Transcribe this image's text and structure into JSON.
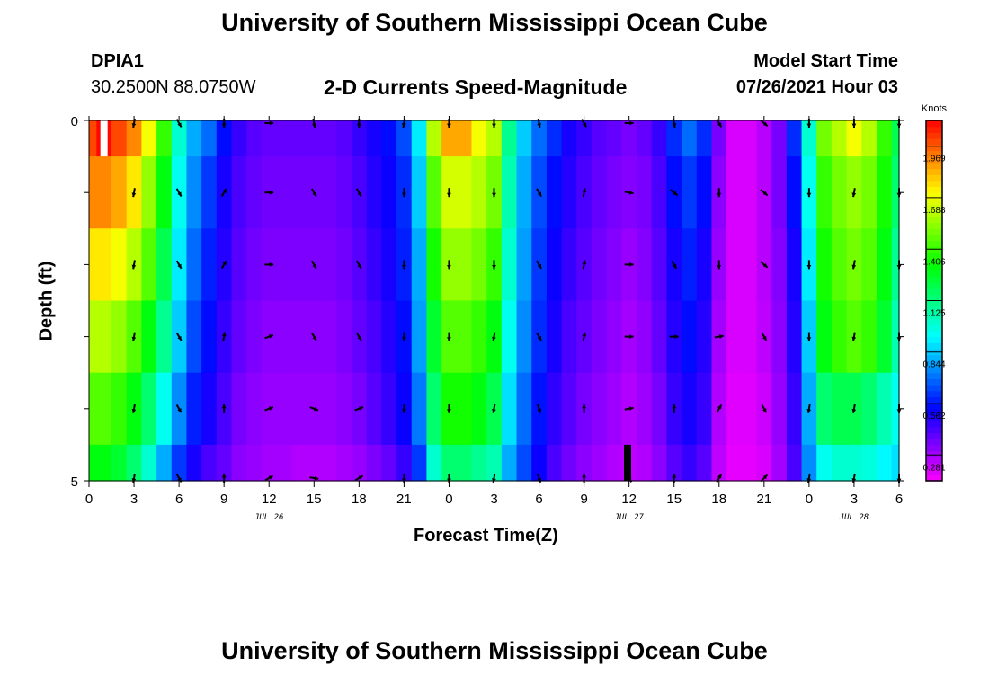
{
  "header": {
    "top_title": "University of Southern Mississippi Ocean Cube",
    "bottom_title": "University of Southern Mississippi Ocean Cube",
    "station_id": "DPIA1",
    "station_coords": "30.2500N  88.0750W",
    "model_start_label": "Model Start Time",
    "model_start_value": "07/26/2021 Hour 03"
  },
  "chart_data": {
    "type": "heatmap",
    "title": "2-D Currents Speed-Magnitude",
    "xlabel": "Forecast Time(Z)",
    "ylabel": "Depth (ft)",
    "ylim": [
      0,
      5
    ],
    "y_tick_labels": [
      "0",
      "5"
    ],
    "x_hours": [
      0,
      3,
      6,
      9,
      12,
      15,
      18,
      21,
      24,
      27,
      30,
      33,
      36,
      39,
      42,
      45,
      48,
      51,
      54
    ],
    "x_tick_labels": [
      "0",
      "3",
      "6",
      "9",
      "12",
      "15",
      "18",
      "21",
      "0",
      "3",
      "6",
      "9",
      "12",
      "15",
      "18",
      "21",
      "0",
      "3",
      "6"
    ],
    "date_labels": [
      {
        "label": "JUL 26",
        "hour": 12
      },
      {
        "label": "JUL 27",
        "hour": 36
      },
      {
        "label": "JUL 28",
        "hour": 51
      }
    ],
    "colorbar": {
      "unit": "Knots",
      "min": 0.14,
      "max": 2.11,
      "ticks": [
        "1.969",
        "1.688",
        "1.406",
        "1.125",
        "0.844",
        "0.562",
        "0.281"
      ],
      "tick_values": [
        1.969,
        1.688,
        1.406,
        1.125,
        0.844,
        0.562,
        0.281
      ]
    },
    "column_hours": [
      0,
      1,
      2,
      3,
      4,
      5,
      6,
      7,
      8,
      9,
      10,
      11,
      12,
      13,
      14,
      15,
      16,
      17,
      18,
      19,
      20,
      21,
      22,
      23,
      24,
      25,
      26,
      27,
      28,
      29,
      30,
      31,
      32,
      33,
      34,
      35,
      36,
      37,
      38,
      39,
      40,
      41,
      42,
      43,
      44,
      45,
      46,
      47,
      48,
      49,
      50,
      51,
      52,
      53,
      54
    ],
    "speed_rows": [
      {
        "depth_range": [
          0,
          0.5
        ],
        "values": [
          2.0,
          2.1,
          2.0,
          1.9,
          1.7,
          1.4,
          1.0,
          0.8,
          0.7,
          0.55,
          0.45,
          0.4,
          0.38,
          0.38,
          0.38,
          0.38,
          0.38,
          0.4,
          0.45,
          0.5,
          0.55,
          0.65,
          0.9,
          1.6,
          1.85,
          1.85,
          1.7,
          1.6,
          1.1,
          0.85,
          0.7,
          0.6,
          0.5,
          0.45,
          0.4,
          0.38,
          0.35,
          0.38,
          0.45,
          0.6,
          0.7,
          0.6,
          0.35,
          0.2,
          0.2,
          0.25,
          0.35,
          0.6,
          1.0,
          1.5,
          1.6,
          1.7,
          1.6,
          1.4,
          1.2
        ]
      },
      {
        "depth_range": [
          0.5,
          1.5
        ],
        "values": [
          1.9,
          1.9,
          1.85,
          1.75,
          1.55,
          1.3,
          0.95,
          0.75,
          0.62,
          0.5,
          0.42,
          0.38,
          0.36,
          0.36,
          0.36,
          0.36,
          0.36,
          0.38,
          0.42,
          0.48,
          0.52,
          0.6,
          0.85,
          1.45,
          1.65,
          1.65,
          1.6,
          1.5,
          1.05,
          0.8,
          0.65,
          0.55,
          0.48,
          0.42,
          0.38,
          0.35,
          0.33,
          0.35,
          0.42,
          0.55,
          0.62,
          0.55,
          0.32,
          0.2,
          0.2,
          0.25,
          0.35,
          0.55,
          0.95,
          1.4,
          1.5,
          1.55,
          1.5,
          1.35,
          1.15
        ]
      },
      {
        "depth_range": [
          1.5,
          2.5
        ],
        "values": [
          1.75,
          1.75,
          1.7,
          1.6,
          1.45,
          1.2,
          0.9,
          0.7,
          0.58,
          0.48,
          0.4,
          0.36,
          0.34,
          0.34,
          0.34,
          0.34,
          0.34,
          0.36,
          0.4,
          0.45,
          0.5,
          0.58,
          0.8,
          1.35,
          1.55,
          1.55,
          1.5,
          1.4,
          1.0,
          0.78,
          0.62,
          0.52,
          0.45,
          0.4,
          0.36,
          0.33,
          0.3,
          0.33,
          0.4,
          0.5,
          0.58,
          0.5,
          0.3,
          0.2,
          0.2,
          0.25,
          0.33,
          0.5,
          0.9,
          1.35,
          1.45,
          1.5,
          1.45,
          1.3,
          1.1
        ]
      },
      {
        "depth_range": [
          2.5,
          3.5
        ],
        "values": [
          1.6,
          1.6,
          1.55,
          1.45,
          1.3,
          1.1,
          0.85,
          0.65,
          0.55,
          0.45,
          0.38,
          0.34,
          0.32,
          0.32,
          0.32,
          0.32,
          0.32,
          0.34,
          0.38,
          0.42,
          0.48,
          0.55,
          0.78,
          1.25,
          1.45,
          1.45,
          1.4,
          1.3,
          0.95,
          0.75,
          0.6,
          0.5,
          0.42,
          0.38,
          0.34,
          0.31,
          0.28,
          0.31,
          0.38,
          0.48,
          0.55,
          0.48,
          0.28,
          0.2,
          0.2,
          0.24,
          0.32,
          0.48,
          0.85,
          1.3,
          1.4,
          1.45,
          1.4,
          1.25,
          1.05
        ]
      },
      {
        "depth_range": [
          3.5,
          4.5
        ],
        "values": [
          1.45,
          1.45,
          1.4,
          1.3,
          1.15,
          0.95,
          0.75,
          0.58,
          0.5,
          0.42,
          0.35,
          0.32,
          0.3,
          0.3,
          0.3,
          0.3,
          0.3,
          0.32,
          0.35,
          0.4,
          0.45,
          0.52,
          0.72,
          1.15,
          1.35,
          1.35,
          1.3,
          1.2,
          0.88,
          0.7,
          0.56,
          0.46,
          0.4,
          0.35,
          0.32,
          0.29,
          0.26,
          0.29,
          0.35,
          0.45,
          0.5,
          0.45,
          0.26,
          0.19,
          0.19,
          0.22,
          0.3,
          0.45,
          0.8,
          1.15,
          1.2,
          1.2,
          1.15,
          1.05,
          0.95
        ]
      },
      {
        "depth_range": [
          4.5,
          5
        ],
        "values": [
          1.3,
          1.3,
          1.25,
          1.15,
          1.0,
          0.8,
          0.62,
          0.5,
          0.42,
          0.38,
          0.32,
          0.3,
          0.28,
          0.28,
          0.26,
          0.26,
          0.26,
          0.28,
          0.3,
          0.34,
          0.38,
          0.45,
          0.62,
          1.0,
          1.15,
          1.15,
          1.1,
          1.05,
          0.8,
          0.65,
          0.52,
          0.42,
          0.36,
          0.32,
          0.29,
          0.26,
          0.24,
          0.26,
          0.32,
          0.4,
          0.45,
          0.4,
          0.24,
          0.18,
          0.18,
          0.2,
          0.28,
          0.42,
          0.75,
          0.95,
          1.0,
          1.0,
          0.98,
          0.92,
          0.88
        ]
      }
    ],
    "arrow_hours": [
      3,
      6,
      9,
      12,
      15,
      18,
      21,
      24,
      27,
      30,
      33,
      36,
      39,
      42,
      45,
      48,
      51,
      54
    ],
    "arrow_depths": [
      0,
      1,
      2,
      3,
      4,
      5
    ],
    "arrow_angles_deg": [
      [
        100,
        60,
        90,
        0,
        80,
        90,
        100,
        90,
        90,
        80,
        60,
        0,
        80,
        60,
        40,
        90,
        90,
        90
      ],
      [
        100,
        60,
        -60,
        0,
        60,
        60,
        90,
        90,
        90,
        60,
        -80,
        10,
        40,
        90,
        40,
        90,
        100,
        90
      ],
      [
        100,
        60,
        -60,
        0,
        60,
        60,
        90,
        90,
        90,
        60,
        -80,
        0,
        60,
        90,
        40,
        90,
        100,
        90
      ],
      [
        100,
        60,
        -80,
        -20,
        60,
        60,
        90,
        90,
        100,
        60,
        -80,
        0,
        0,
        -10,
        60,
        90,
        100,
        90
      ],
      [
        100,
        60,
        -90,
        -20,
        20,
        -20,
        90,
        90,
        100,
        70,
        -90,
        -10,
        -90,
        -60,
        60,
        100,
        100,
        90
      ],
      [
        100,
        60,
        -90,
        -30,
        10,
        -30,
        90,
        90,
        100,
        70,
        -90,
        60,
        -90,
        -60,
        -45,
        100,
        100,
        90
      ]
    ],
    "arrow_length_px": 10,
    "gap_markers": [
      {
        "hour": 1.0,
        "depth_range": [
          0,
          0.5
        ],
        "color": "#ffffff"
      },
      {
        "hour": 35.9,
        "depth_range": [
          4.5,
          5
        ],
        "color": "#000000"
      }
    ]
  }
}
